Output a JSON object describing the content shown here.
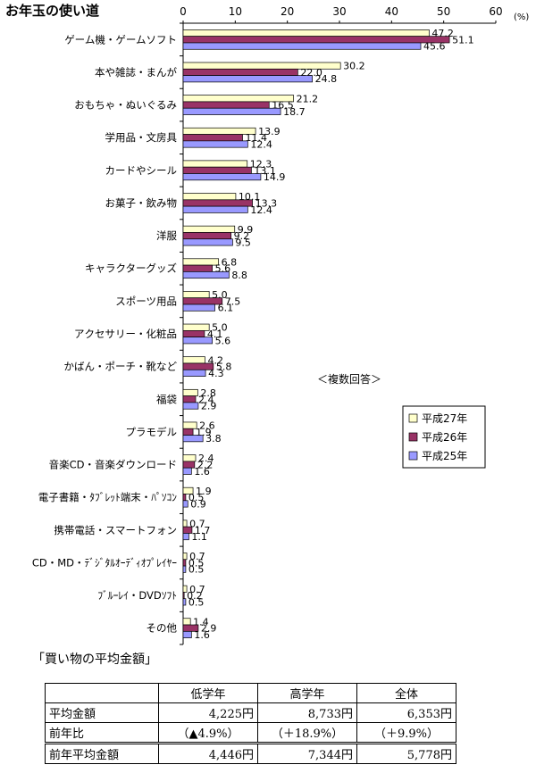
{
  "chart_data": {
    "type": "bar",
    "orientation": "horizontal",
    "title": "お年玉の使い道",
    "unit": "(%)",
    "note": "＜複数回答＞",
    "xlim": [
      0,
      60
    ],
    "xticks": [
      0,
      10,
      20,
      30,
      40,
      50,
      60
    ],
    "categories": [
      "ゲーム機・ゲームソフト",
      "本や雑誌・まんが",
      "おもちゃ・ぬいぐるみ",
      "学用品・文房具",
      "カードやシール",
      "お菓子・飲み物",
      "洋服",
      "キャラクターグッズ",
      "スポーツ用品",
      "アクセサリー・化粧品",
      "かばん・ポーチ・靴など",
      "福袋",
      "プラモデル",
      "音楽CD・音楽ダウンロード",
      "電子書籍・ﾀﾌﾞﾚｯﾄ端末・ﾊﾟｿｺﾝ",
      "携帯電話・スマートフォン",
      "CD・MD・ﾃﾞｼﾞﾀﾙｵｰﾃﾞｨｵﾌﾟﾚｲﾔｰ",
      "ﾌﾞﾙｰﾚｲ・DVDｿﾌﾄ",
      "その他"
    ],
    "series": [
      {
        "name": "平成27年",
        "color": "#FFFFCC",
        "values": [
          47.2,
          30.2,
          21.2,
          13.9,
          12.3,
          10.1,
          9.9,
          6.8,
          5.0,
          5.0,
          4.2,
          2.8,
          2.6,
          2.4,
          1.9,
          0.7,
          0.7,
          0.7,
          1.4
        ]
      },
      {
        "name": "平成26年",
        "color": "#993366",
        "values": [
          51.1,
          22.0,
          16.5,
          11.4,
          13.1,
          13.3,
          9.2,
          5.6,
          7.5,
          4.1,
          5.8,
          2.4,
          1.9,
          2.2,
          0.5,
          1.7,
          0.5,
          0.2,
          2.9
        ]
      },
      {
        "name": "平成25年",
        "color": "#9999FF",
        "values": [
          45.6,
          24.8,
          18.7,
          12.4,
          14.9,
          12.4,
          9.5,
          8.8,
          6.1,
          5.6,
          4.3,
          2.9,
          3.8,
          1.6,
          0.9,
          1.1,
          0.5,
          0.5,
          1.6
        ]
      }
    ],
    "legend_position": "right"
  },
  "price_table": {
    "title": "「買い物の平均金額」",
    "headers": [
      "",
      "低学年",
      "高学年",
      "全体"
    ],
    "rows": [
      {
        "label": "平均金額",
        "values": [
          "4,225円",
          "8,733円",
          "6,353円"
        ]
      },
      {
        "label": "前年比",
        "values": [
          "（▲4.9%）",
          "（＋18.9%）",
          "（＋9.9%）"
        ]
      },
      {
        "label": "前年平均金額",
        "values": [
          "4,446円",
          "7,344円",
          "5,778円"
        ]
      }
    ]
  }
}
